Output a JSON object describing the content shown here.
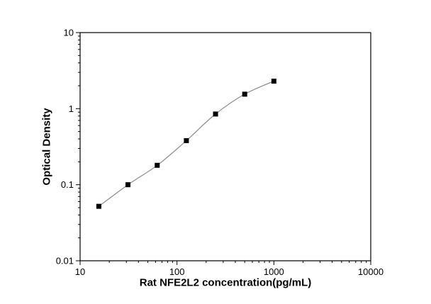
{
  "chart_data": {
    "type": "scatter",
    "title": "",
    "xlabel": "Rat NFE2L2 concentration(pg/mL)",
    "ylabel": "Optical Density",
    "xscale": "log",
    "yscale": "log",
    "xlim": [
      10,
      10000
    ],
    "ylim": [
      0.01,
      10
    ],
    "x_ticks": [
      "10",
      "100",
      "1000",
      "10000"
    ],
    "y_ticks": [
      "0.01",
      "0.1",
      "1",
      "10"
    ],
    "grid": false,
    "legend": false,
    "marker": "filled-square",
    "marker_color": "#000000",
    "line_color": "#8a8a8a",
    "x": [
      15.6,
      31.2,
      62.5,
      125,
      250,
      500,
      1000
    ],
    "y": [
      0.052,
      0.1,
      0.18,
      0.38,
      0.85,
      1.55,
      2.3
    ]
  }
}
